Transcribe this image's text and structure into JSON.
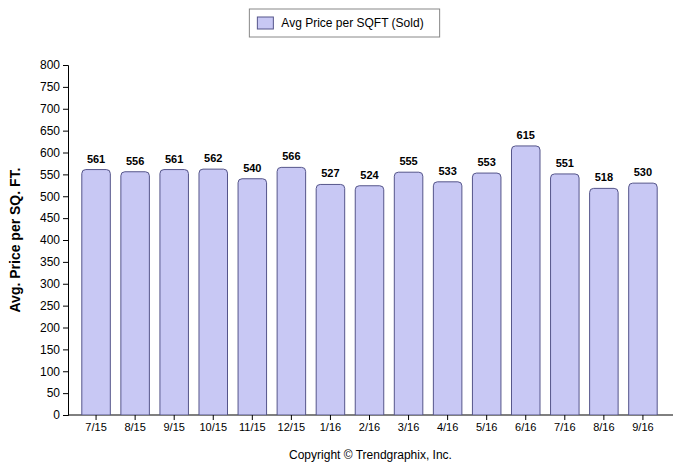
{
  "chart_data": {
    "type": "bar",
    "categories": [
      "7/15",
      "8/15",
      "9/15",
      "10/15",
      "11/15",
      "12/15",
      "1/16",
      "2/16",
      "3/16",
      "4/16",
      "5/16",
      "6/16",
      "7/16",
      "8/16",
      "9/16"
    ],
    "series": [
      {
        "name": "Avg Price per SQFT (Sold)",
        "color": "#c8c8f4",
        "values": [
          561,
          556,
          561,
          562,
          540,
          566,
          527,
          524,
          555,
          533,
          553,
          615,
          551,
          518,
          530
        ]
      }
    ],
    "ylabel": "Avg. Price per SQ. FT.",
    "annotations": [
      "Copyright © Trendgraphix, Inc."
    ],
    "ylim": [
      0,
      800
    ],
    "yticks": [
      0,
      50,
      100,
      150,
      200,
      250,
      300,
      350,
      400,
      450,
      500,
      550,
      600,
      650,
      700,
      750,
      800
    ],
    "grid": false,
    "legend": "top",
    "data_labels": true
  }
}
